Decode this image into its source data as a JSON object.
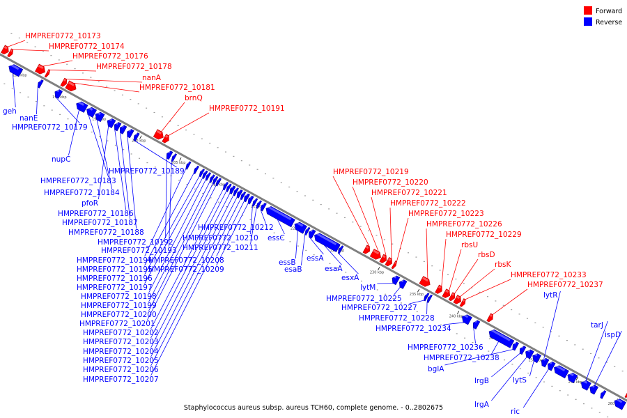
{
  "legend": [
    {
      "label": "Forward",
      "color": "#ff0000"
    },
    {
      "label": "Reverse",
      "color": "#0000ff"
    }
  ],
  "caption": "Staphylococcus aureus subsp. aureus TCH60, complete genome. - 0..2802675",
  "colors": {
    "forward": "#ff0000",
    "reverse": "#0000ff",
    "backbone": "#808080"
  },
  "genome_range_kbp": [
    182,
    261
  ],
  "ticks": [
    {
      "kbp": 185,
      "label": "185 kbp"
    },
    {
      "kbp": 190,
      "label": "190 kbp"
    },
    {
      "kbp": 195,
      "label": "195 kbp"
    },
    {
      "kbp": 200,
      "label": "200 kbp"
    },
    {
      "kbp": 205,
      "label": "205 kbp"
    },
    {
      "kbp": 210,
      "label": "210 kbp"
    },
    {
      "kbp": 215,
      "label": "215 kbp"
    },
    {
      "kbp": 220,
      "label": "220 kbp"
    },
    {
      "kbp": 225,
      "label": "225 kbp"
    },
    {
      "kbp": 230,
      "label": "230 kbp"
    },
    {
      "kbp": 235,
      "label": "235 kbp"
    },
    {
      "kbp": 240,
      "label": "240 kbp"
    },
    {
      "kbp": 245,
      "label": "245 kbp"
    },
    {
      "kbp": 250,
      "label": "250 kbp"
    },
    {
      "kbp": 255,
      "label": "255 kbp"
    },
    {
      "kbp": 260,
      "label": "260 kbp"
    }
  ],
  "forward_genes": [
    {
      "name": "HMPREF0772_10173",
      "start_kbp": 182.0,
      "end_kbp": 182.7
    },
    {
      "name": "HMPREF0772_10174",
      "start_kbp": 182.8,
      "end_kbp": 183.2
    },
    {
      "name": "HMPREF0772_10176",
      "start_kbp": 186.3,
      "end_kbp": 187.3
    },
    {
      "name": "HMPREF0772_10178",
      "start_kbp": 187.5,
      "end_kbp": 187.8
    },
    {
      "name": "nanA",
      "start_kbp": 189.5,
      "end_kbp": 190.0
    },
    {
      "name": "HMPREF0772_10181",
      "start_kbp": 190.1,
      "end_kbp": 191.2
    },
    {
      "name": "brnQ",
      "start_kbp": 201.2,
      "end_kbp": 202.2
    },
    {
      "name": "HMPREF0772_10191",
      "start_kbp": 202.3,
      "end_kbp": 202.9
    },
    {
      "name": "HMPREF0772_10219",
      "start_kbp": 227.6,
      "end_kbp": 228.2
    },
    {
      "name": "HMPREF0772_10220",
      "start_kbp": 228.5,
      "end_kbp": 229.6
    },
    {
      "name": "HMPREF0772_10221",
      "start_kbp": 229.7,
      "end_kbp": 230.3
    },
    {
      "name": "HMPREF0772_10222",
      "start_kbp": 230.4,
      "end_kbp": 231.0
    },
    {
      "name": "HMPREF0772_10223",
      "start_kbp": 231.2,
      "end_kbp": 231.5
    },
    {
      "name": "HMPREF0772_10226",
      "start_kbp": 234.7,
      "end_kbp": 235.8
    },
    {
      "name": "HMPREF0772_10229",
      "start_kbp": 236.7,
      "end_kbp": 237.3
    },
    {
      "name": "rbsU",
      "start_kbp": 237.6,
      "end_kbp": 238.3
    },
    {
      "name": "rbsD",
      "start_kbp": 238.4,
      "end_kbp": 238.9
    },
    {
      "name": "rbsK",
      "start_kbp": 239.0,
      "end_kbp": 239.7
    },
    {
      "name": "HMPREF0772_10233",
      "start_kbp": 239.8,
      "end_kbp": 240.2
    },
    {
      "name": "HMPREF0772_10237",
      "start_kbp": 243.2,
      "end_kbp": 243.7
    },
    {
      "name": "",
      "start_kbp": 260.6,
      "end_kbp": 260.9
    }
  ],
  "reverse_genes": [
    {
      "name": "geh",
      "start_kbp": 183.5,
      "end_kbp": 185.0
    },
    {
      "name": "nanE",
      "start_kbp": 187.2,
      "end_kbp": 187.6
    },
    {
      "name": "HMPREF0772_10179",
      "start_kbp": 189.3,
      "end_kbp": 190.0
    },
    {
      "name": "nupC",
      "start_kbp": 192.0,
      "end_kbp": 193.2
    },
    {
      "name": "HMPREF0772_10183",
      "start_kbp": 193.3,
      "end_kbp": 194.3
    },
    {
      "name": "HMPREF0772_10184",
      "start_kbp": 194.4,
      "end_kbp": 195.3
    },
    {
      "name": "pfoR",
      "start_kbp": 195.9,
      "end_kbp": 196.7
    },
    {
      "name": "HMPREF0772_10186",
      "start_kbp": 196.8,
      "end_kbp": 197.4
    },
    {
      "name": "HMPREF0772_10187",
      "start_kbp": 197.5,
      "end_kbp": 198.1
    },
    {
      "name": "HMPREF0772_10188",
      "start_kbp": 198.4,
      "end_kbp": 199.0
    },
    {
      "name": "HMPREF0772_10189",
      "start_kbp": 199.3,
      "end_kbp": 199.7
    },
    {
      "name": "HMPREF0772_10192",
      "start_kbp": 203.4,
      "end_kbp": 203.9
    },
    {
      "name": "HMPREF0772_10193",
      "start_kbp": 204.1,
      "end_kbp": 204.4
    },
    {
      "name": "HMPREF0772_10194",
      "start_kbp": 205.9,
      "end_kbp": 206.2
    },
    {
      "name": "HMPREF0772_10195",
      "start_kbp": 206.9,
      "end_kbp": 207.2
    },
    {
      "name": "HMPREF0772_10196",
      "start_kbp": 207.6,
      "end_kbp": 207.9
    },
    {
      "name": "HMPREF0772_10197",
      "start_kbp": 208.0,
      "end_kbp": 208.3
    },
    {
      "name": "HMPREF0772_10198",
      "start_kbp": 208.4,
      "end_kbp": 208.7
    },
    {
      "name": "HMPREF0772_10199",
      "start_kbp": 208.9,
      "end_kbp": 209.2
    },
    {
      "name": "HMPREF0772_10200",
      "start_kbp": 209.3,
      "end_kbp": 209.6
    },
    {
      "name": "HMPREF0772_10201",
      "start_kbp": 209.7,
      "end_kbp": 210.0
    },
    {
      "name": "HMPREF0772_10202",
      "start_kbp": 210.6,
      "end_kbp": 210.9
    },
    {
      "name": "HMPREF0772_10203",
      "start_kbp": 211.0,
      "end_kbp": 211.3
    },
    {
      "name": "HMPREF0772_10204",
      "start_kbp": 211.4,
      "end_kbp": 211.8
    },
    {
      "name": "HMPREF0772_10205",
      "start_kbp": 211.9,
      "end_kbp": 212.2
    },
    {
      "name": "HMPREF0772_10206",
      "start_kbp": 212.3,
      "end_kbp": 212.7
    },
    {
      "name": "HMPREF0772_10207",
      "start_kbp": 212.8,
      "end_kbp": 213.1
    },
    {
      "name": "HMPREF0772_10208",
      "start_kbp": 213.2,
      "end_kbp": 213.6
    },
    {
      "name": "HMPREF0772_10209",
      "start_kbp": 213.7,
      "end_kbp": 214.1
    },
    {
      "name": "HMPREF0772_10210",
      "start_kbp": 214.3,
      "end_kbp": 214.6
    },
    {
      "name": "HMPREF0772_10211",
      "start_kbp": 214.8,
      "end_kbp": 215.1
    },
    {
      "name": "HMPREF0772_10212",
      "start_kbp": 215.3,
      "end_kbp": 215.7
    },
    {
      "name": "essC",
      "start_kbp": 215.9,
      "end_kbp": 219.3
    },
    {
      "name": "essB",
      "start_kbp": 219.5,
      "end_kbp": 220.8
    },
    {
      "name": "esaB",
      "start_kbp": 220.9,
      "end_kbp": 221.2
    },
    {
      "name": "essA",
      "start_kbp": 221.3,
      "end_kbp": 221.9
    },
    {
      "name": "esaA",
      "start_kbp": 222.0,
      "end_kbp": 225.0
    },
    {
      "name": "esxA",
      "start_kbp": 225.1,
      "end_kbp": 225.4
    },
    {
      "name": "lytM",
      "start_kbp": 231.8,
      "end_kbp": 232.5
    },
    {
      "name": "HMPREF0772_10225",
      "start_kbp": 232.7,
      "end_kbp": 233.4
    },
    {
      "name": "HMPREF0772_10227",
      "start_kbp": 235.9,
      "end_kbp": 236.2
    },
    {
      "name": "HMPREF0772_10228",
      "start_kbp": 236.3,
      "end_kbp": 236.6
    },
    {
      "name": "HMPREF0772_10234",
      "start_kbp": 240.6,
      "end_kbp": 241.6
    },
    {
      "name": "HMPREF0772_10236",
      "start_kbp": 242.0,
      "end_kbp": 242.6
    },
    {
      "name": "HMPREF0772_10238",
      "start_kbp": 244.0,
      "end_kbp": 246.9
    },
    {
      "name": "bglA",
      "start_kbp": 247.0,
      "end_kbp": 247.5
    },
    {
      "name": "lrgB",
      "start_kbp": 247.9,
      "end_kbp": 248.4
    },
    {
      "name": "lrgA",
      "start_kbp": 248.6,
      "end_kbp": 249.4
    },
    {
      "name": "lytS",
      "start_kbp": 249.5,
      "end_kbp": 250.3
    },
    {
      "name": "lytR",
      "start_kbp": 250.6,
      "end_kbp": 251.3
    },
    {
      "name": "ric",
      "start_kbp": 251.4,
      "end_kbp": 252.1
    },
    {
      "name": "",
      "start_kbp": 252.2,
      "end_kbp": 253.8
    },
    {
      "name": "",
      "start_kbp": 253.9,
      "end_kbp": 254.9
    },
    {
      "name": "tarJ",
      "start_kbp": 255.6,
      "end_kbp": 256.6
    },
    {
      "name": "ispD",
      "start_kbp": 256.7,
      "end_kbp": 257.5
    },
    {
      "name": "",
      "start_kbp": 258.1,
      "end_kbp": 258.5
    },
    {
      "name": "",
      "start_kbp": 259.8,
      "end_kbp": 261.0
    }
  ]
}
